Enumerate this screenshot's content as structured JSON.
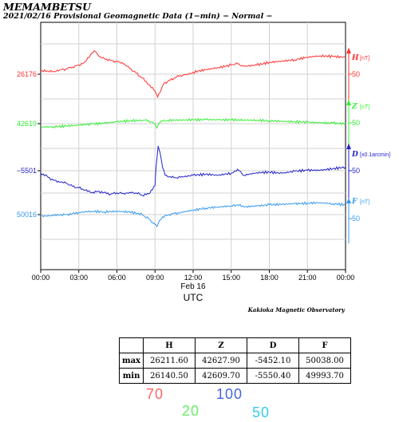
{
  "header": {
    "station": "MEMAMBETSU",
    "subtitle": "2021/02/16  Provisional Geomagnetic Data (1−min)  − Normal −"
  },
  "chart_data": {
    "type": "line",
    "x_ticks": [
      "00:00",
      "03:00",
      "06:00",
      "09:00",
      "12:00",
      "15:00",
      "18:00",
      "21:00",
      "00:00"
    ],
    "date_label": "Feb 16",
    "xlabel": "UTC",
    "credit": "Kakioka Magnetic Observatory",
    "series": [
      {
        "name": "H",
        "unit": "[nT]",
        "scale": "50",
        "base_label": "26176",
        "color": "#ff3030",
        "x_hours": [
          0,
          0.5,
          1,
          1.5,
          2,
          2.5,
          3,
          3.5,
          4,
          4.3,
          4.6,
          5,
          5.5,
          6,
          6.5,
          7,
          7.5,
          8,
          8.5,
          9,
          9.2,
          9.4,
          9.7,
          10,
          10.5,
          11,
          11.5,
          12,
          13,
          14,
          15,
          15.5,
          16,
          17,
          18,
          19,
          20,
          21,
          22,
          23,
          24
        ],
        "values": [
          26180,
          26181,
          26180,
          26183,
          26184,
          26187,
          26190,
          26195,
          26208,
          26211,
          26203,
          26200,
          26197,
          26195,
          26192,
          26185,
          26178,
          26170,
          26160,
          26150,
          26141,
          26148,
          26162,
          26165,
          26170,
          26174,
          26176,
          26179,
          26183,
          26186,
          26190,
          26192,
          26188,
          26190,
          26194,
          26196,
          26198,
          26202,
          26204,
          26203,
          26202
        ]
      },
      {
        "name": "Z",
        "unit": "[nT]",
        "scale": "50",
        "base_label": "42619",
        "color": "#33ee33",
        "x_hours": [
          0,
          1,
          2,
          3,
          4,
          5,
          6,
          7,
          8,
          8.5,
          9,
          9.15,
          9.3,
          9.6,
          10,
          11,
          12,
          13,
          14,
          15,
          16,
          17,
          18,
          19,
          20,
          21,
          22,
          23,
          24
        ],
        "values": [
          42612,
          42612.5,
          42614,
          42616,
          42618,
          42620,
          42623,
          42625,
          42626,
          42625,
          42619,
          42610,
          42620,
          42624,
          42626,
          42626.5,
          42627,
          42627.5,
          42627,
          42627,
          42626.5,
          42626,
          42625,
          42624,
          42623,
          42622,
          42621,
          42620,
          42619
        ]
      },
      {
        "name": "D",
        "unit": "[x0.1arcmin]",
        "scale": "50",
        "base_label": "−5501",
        "color": "#2222cc",
        "x_hours": [
          0,
          0.5,
          1,
          1.5,
          2,
          2.5,
          3,
          3.5,
          4,
          4.5,
          5,
          5.5,
          6,
          6.5,
          7,
          7.5,
          8,
          8.5,
          9,
          9.1,
          9.25,
          9.4,
          9.6,
          9.8,
          10,
          10.5,
          11,
          12,
          13,
          14,
          15,
          15.5,
          16,
          17,
          18,
          19,
          20,
          21,
          22,
          23,
          24
        ],
        "values": [
          -5506,
          -5512,
          -5520,
          -5524,
          -5526,
          -5532,
          -5535,
          -5540,
          -5545,
          -5542,
          -5544,
          -5548,
          -5545,
          -5546,
          -5544,
          -5545,
          -5550,
          -5547,
          -5530,
          -5490,
          -5452,
          -5465,
          -5495,
          -5510,
          -5513,
          -5515,
          -5514,
          -5510,
          -5508,
          -5510,
          -5506,
          -5498,
          -5510,
          -5505,
          -5504,
          -5506,
          -5502,
          -5500,
          -5500,
          -5497,
          -5494
        ]
      },
      {
        "name": "F",
        "unit": "[nT]",
        "scale": "50",
        "base_label": "50016",
        "color": "#3399ee",
        "x_hours": [
          0,
          1,
          1.5,
          2,
          2.5,
          3,
          4,
          5,
          6,
          7,
          8,
          8.5,
          9,
          9.15,
          9.3,
          9.6,
          10,
          10.5,
          11,
          12,
          13,
          14,
          15,
          15.5,
          16,
          17,
          18,
          19,
          20,
          21,
          22,
          23,
          24
        ],
        "values": [
          50013,
          50014,
          50015,
          50016,
          50018,
          50020,
          50022,
          50021,
          50022,
          50021,
          50016,
          50008,
          49998,
          49994,
          50002,
          50012,
          50015,
          50018,
          50020,
          50024,
          50028,
          50030,
          50032,
          50034,
          50030,
          50032,
          50034,
          50035,
          50036,
          50037,
          50038,
          50036,
          50034
        ]
      }
    ]
  },
  "stats_table": {
    "headers": [
      "",
      "H",
      "Z",
      "D",
      "F"
    ],
    "rows": [
      {
        "label": "max",
        "H": "26211.60",
        "Z": "42627.90",
        "D": "-5452.10",
        "F": "50038.00"
      },
      {
        "label": "min",
        "H": "26140.50",
        "Z": "42609.70",
        "D": "-5550.40",
        "F": "49993.70"
      }
    ]
  },
  "scale_legend": [
    {
      "value": "70",
      "color": "#ff6666"
    },
    {
      "value": "20",
      "color": "#66ee66"
    },
    {
      "value": "100",
      "color": "#4466dd"
    },
    {
      "value": "50",
      "color": "#33ccee"
    }
  ]
}
